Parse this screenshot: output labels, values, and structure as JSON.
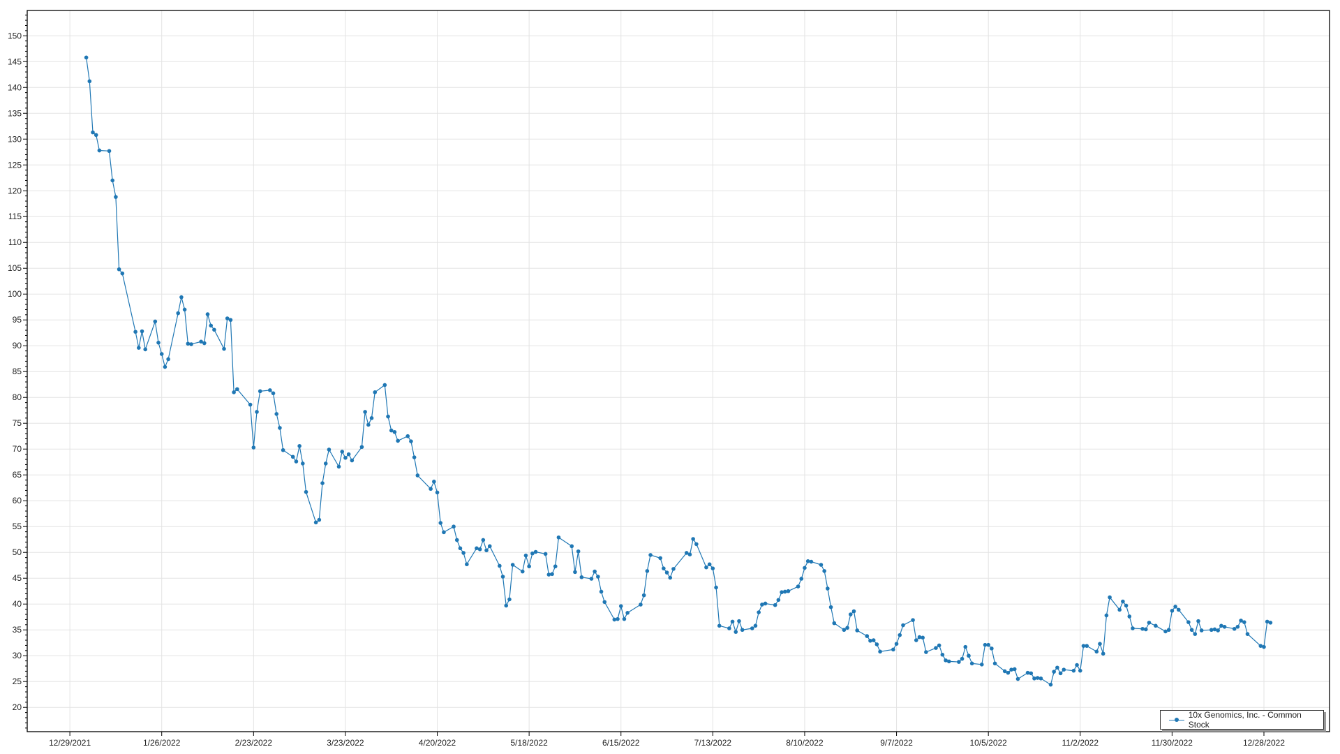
{
  "chart_data": {
    "type": "line",
    "title": "",
    "xlabel": "",
    "ylabel": "",
    "ylim": [
      15.3,
      154.9
    ],
    "xlim": [
      "2021-12-16",
      "2023-01-17"
    ],
    "grid": true,
    "legend_position": "bottom-right",
    "color": "#1f77b4",
    "x_tick_labels": [
      "12/29/2021",
      "1/26/2022",
      "2/23/2022",
      "3/23/2022",
      "4/20/2022",
      "5/18/2022",
      "6/15/2022",
      "7/13/2022",
      "8/10/2022",
      "9/7/2022",
      "10/5/2022",
      "11/2/2022",
      "11/30/2022",
      "12/28/2022"
    ],
    "y_tick_labels": [
      "20",
      "25",
      "30",
      "35",
      "40",
      "45",
      "50",
      "55",
      "60",
      "65",
      "70",
      "75",
      "80",
      "85",
      "90",
      "95",
      "100",
      "105",
      "110",
      "115",
      "120",
      "125",
      "130",
      "135",
      "140",
      "145",
      "150"
    ],
    "series": [
      {
        "name": "10x Genomics, Inc. - Common Stock",
        "x": [
          "2022-01-03",
          "2022-01-04",
          "2022-01-05",
          "2022-01-06",
          "2022-01-07",
          "2022-01-10",
          "2022-01-11",
          "2022-01-12",
          "2022-01-13",
          "2022-01-14",
          "2022-01-18",
          "2022-01-19",
          "2022-01-20",
          "2022-01-21",
          "2022-01-24",
          "2022-01-25",
          "2022-01-26",
          "2022-01-27",
          "2022-01-28",
          "2022-01-31",
          "2022-02-01",
          "2022-02-02",
          "2022-02-03",
          "2022-02-04",
          "2022-02-07",
          "2022-02-08",
          "2022-02-09",
          "2022-02-10",
          "2022-02-11",
          "2022-02-14",
          "2022-02-15",
          "2022-02-16",
          "2022-02-17",
          "2022-02-18",
          "2022-02-22",
          "2022-02-23",
          "2022-02-24",
          "2022-02-25",
          "2022-02-28",
          "2022-03-01",
          "2022-03-02",
          "2022-03-03",
          "2022-03-04",
          "2022-03-07",
          "2022-03-08",
          "2022-03-09",
          "2022-03-10",
          "2022-03-11",
          "2022-03-14",
          "2022-03-15",
          "2022-03-16",
          "2022-03-17",
          "2022-03-18",
          "2022-03-21",
          "2022-03-22",
          "2022-03-23",
          "2022-03-24",
          "2022-03-25",
          "2022-03-28",
          "2022-03-29",
          "2022-03-30",
          "2022-03-31",
          "2022-04-01",
          "2022-04-04",
          "2022-04-05",
          "2022-04-06",
          "2022-04-07",
          "2022-04-08",
          "2022-04-11",
          "2022-04-12",
          "2022-04-13",
          "2022-04-14",
          "2022-04-18",
          "2022-04-19",
          "2022-04-20",
          "2022-04-21",
          "2022-04-22",
          "2022-04-25",
          "2022-04-26",
          "2022-04-27",
          "2022-04-28",
          "2022-04-29",
          "2022-05-02",
          "2022-05-03",
          "2022-05-04",
          "2022-05-05",
          "2022-05-06",
          "2022-05-09",
          "2022-05-10",
          "2022-05-11",
          "2022-05-12",
          "2022-05-13",
          "2022-05-16",
          "2022-05-17",
          "2022-05-18",
          "2022-05-19",
          "2022-05-20",
          "2022-05-23",
          "2022-05-24",
          "2022-05-25",
          "2022-05-26",
          "2022-05-27",
          "2022-05-31",
          "2022-06-01",
          "2022-06-02",
          "2022-06-03",
          "2022-06-06",
          "2022-06-07",
          "2022-06-08",
          "2022-06-09",
          "2022-06-10",
          "2022-06-13",
          "2022-06-14",
          "2022-06-15",
          "2022-06-16",
          "2022-06-17",
          "2022-06-21",
          "2022-06-22",
          "2022-06-23",
          "2022-06-24",
          "2022-06-27",
          "2022-06-28",
          "2022-06-29",
          "2022-06-30",
          "2022-07-01",
          "2022-07-05",
          "2022-07-06",
          "2022-07-07",
          "2022-07-08",
          "2022-07-11",
          "2022-07-12",
          "2022-07-13",
          "2022-07-14",
          "2022-07-15",
          "2022-07-18",
          "2022-07-19",
          "2022-07-20",
          "2022-07-21",
          "2022-07-22",
          "2022-07-25",
          "2022-07-26",
          "2022-07-27",
          "2022-07-28",
          "2022-07-29",
          "2022-08-01",
          "2022-08-02",
          "2022-08-03",
          "2022-08-04",
          "2022-08-05",
          "2022-08-08",
          "2022-08-09",
          "2022-08-10",
          "2022-08-11",
          "2022-08-12",
          "2022-08-15",
          "2022-08-16",
          "2022-08-17",
          "2022-08-18",
          "2022-08-19",
          "2022-08-22",
          "2022-08-23",
          "2022-08-24",
          "2022-08-25",
          "2022-08-26",
          "2022-08-29",
          "2022-08-30",
          "2022-08-31",
          "2022-09-01",
          "2022-09-02",
          "2022-09-06",
          "2022-09-07",
          "2022-09-08",
          "2022-09-09",
          "2022-09-12",
          "2022-09-13",
          "2022-09-14",
          "2022-09-15",
          "2022-09-16",
          "2022-09-19",
          "2022-09-20",
          "2022-09-21",
          "2022-09-22",
          "2022-09-23",
          "2022-09-26",
          "2022-09-27",
          "2022-09-28",
          "2022-09-29",
          "2022-09-30",
          "2022-10-03",
          "2022-10-04",
          "2022-10-05",
          "2022-10-06",
          "2022-10-07",
          "2022-10-10",
          "2022-10-11",
          "2022-10-12",
          "2022-10-13",
          "2022-10-14",
          "2022-10-17",
          "2022-10-18",
          "2022-10-19",
          "2022-10-20",
          "2022-10-21",
          "2022-10-24",
          "2022-10-25",
          "2022-10-26",
          "2022-10-27",
          "2022-10-28",
          "2022-10-31",
          "2022-11-01",
          "2022-11-02",
          "2022-11-03",
          "2022-11-04",
          "2022-11-07",
          "2022-11-08",
          "2022-11-09",
          "2022-11-10",
          "2022-11-11",
          "2022-11-14",
          "2022-11-15",
          "2022-11-16",
          "2022-11-17",
          "2022-11-18",
          "2022-11-21",
          "2022-11-22",
          "2022-11-23",
          "2022-11-25",
          "2022-11-28",
          "2022-11-29",
          "2022-11-30",
          "2022-12-01",
          "2022-12-02",
          "2022-12-05",
          "2022-12-06",
          "2022-12-07",
          "2022-12-08",
          "2022-12-09",
          "2022-12-12",
          "2022-12-13",
          "2022-12-14",
          "2022-12-15",
          "2022-12-16",
          "2022-12-19",
          "2022-12-20",
          "2022-12-21",
          "2022-12-22",
          "2022-12-23",
          "2022-12-27",
          "2022-12-28",
          "2022-12-29",
          "2022-12-30"
        ],
        "y": [
          145.8,
          141.2,
          131.3,
          130.8,
          127.8,
          127.7,
          122,
          118.8,
          104.8,
          104,
          92.7,
          89.6,
          92.8,
          89.3,
          94.7,
          90.6,
          88.4,
          85.9,
          87.4,
          96.3,
          99.4,
          97,
          90.4,
          90.3,
          90.8,
          90.5,
          96.1,
          93.9,
          93.1,
          89.4,
          95.3,
          95,
          81,
          81.6,
          78.6,
          70.3,
          77.2,
          81.2,
          81.4,
          80.8,
          76.8,
          74.1,
          69.8,
          68.5,
          67.6,
          70.6,
          67.2,
          61.7,
          55.8,
          56.3,
          63.4,
          67.2,
          69.9,
          66.6,
          69.5,
          68.3,
          69,
          67.8,
          70.4,
          77.2,
          74.7,
          76,
          81,
          82.4,
          76.3,
          73.6,
          73.3,
          71.6,
          72.5,
          71.5,
          68.4,
          64.9,
          62.3,
          63.7,
          61.6,
          55.7,
          53.9,
          55,
          52.4,
          50.8,
          49.9,
          47.7,
          50.8,
          50.6,
          52.4,
          50.4,
          51.2,
          47.4,
          45.3,
          39.7,
          40.9,
          47.6,
          46.3,
          49.4,
          47.3,
          49.8,
          50.1,
          49.7,
          45.7,
          45.8,
          47.3,
          52.9,
          51.2,
          46.2,
          50.2,
          45.2,
          44.9,
          46.3,
          45.3,
          42.4,
          40.4,
          37,
          37.1,
          39.6,
          37.1,
          38.3,
          39.9,
          41.7,
          46.4,
          49.5,
          48.9,
          46.9,
          46.1,
          45.1,
          46.8,
          49.9,
          49.6,
          52.6,
          51.6,
          47.1,
          47.7,
          46.9,
          43.2,
          35.8,
          35.3,
          36.6,
          34.6,
          36.7,
          35,
          35.3,
          35.8,
          38.4,
          39.9,
          40.1,
          39.8,
          40.8,
          42.3,
          42.4,
          42.5,
          43.4,
          44.9,
          47,
          48.3,
          48.2,
          47.6,
          46.4,
          43,
          39.4,
          36.3,
          35,
          35.4,
          38,
          38.6,
          34.9,
          33.8,
          32.9,
          33,
          32.2,
          30.8,
          31.2,
          32.3,
          34,
          35.9,
          36.9,
          33,
          33.6,
          33.5,
          30.7,
          31.5,
          32,
          30.2,
          29.1,
          28.9,
          28.8,
          29.4,
          31.7,
          30,
          28.5,
          28.3,
          32.1,
          32.1,
          31.4,
          28.5,
          27,
          26.7,
          27.3,
          27.4,
          25.5,
          26.7,
          26.6,
          25.6,
          25.7,
          25.6,
          24.4,
          26.9,
          27.7,
          26.6,
          27.3,
          27.1,
          28.2,
          27.1,
          31.9,
          31.9,
          30.8,
          32.3,
          30.4,
          37.8,
          41.3,
          38.9,
          40.5,
          39.7,
          37.6,
          35.3,
          35.2,
          35.1,
          36.4,
          35.8,
          34.7,
          35,
          38.7,
          39.5,
          38.9,
          36.5,
          35,
          34.2,
          36.7,
          34.9,
          35,
          35.1,
          34.9,
          35.8,
          35.6,
          35.2,
          35.6,
          36.8,
          36.5,
          34.2,
          31.9,
          31.7,
          36.6,
          36.4
        ]
      }
    ]
  }
}
